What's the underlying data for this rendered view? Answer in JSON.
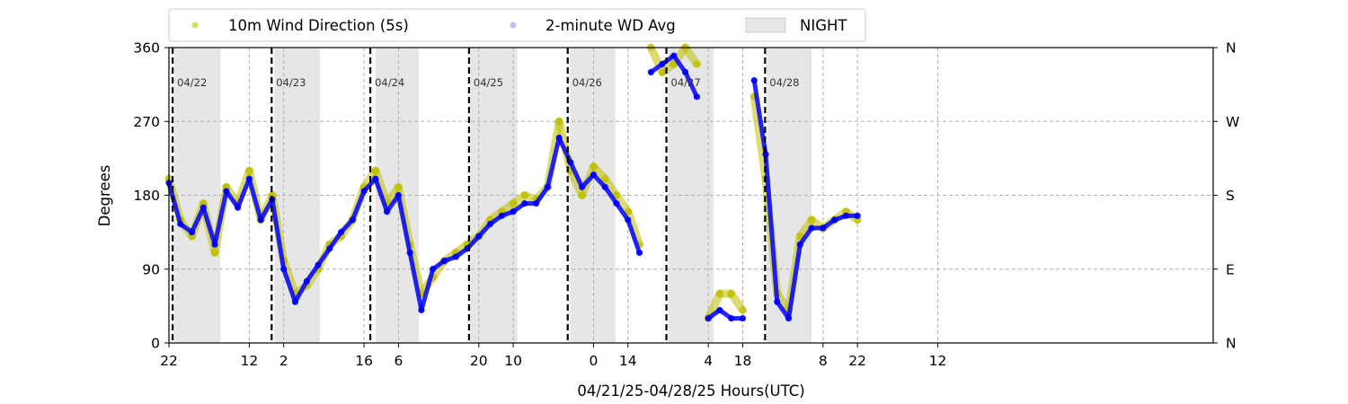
{
  "chart_data": {
    "type": "scatter",
    "xlabel": "04/21/25-04/28/25  Hours(UTC)",
    "ylabel": "Degrees",
    "ylim": [
      0,
      360
    ],
    "xlim_hours": [
      0,
      182
    ],
    "y_ticks": [
      0,
      90,
      180,
      270,
      360
    ],
    "y_right_ticks": [
      {
        "value": 0,
        "label": "N"
      },
      {
        "value": 90,
        "label": "E"
      },
      {
        "value": 180,
        "label": "S"
      },
      {
        "value": 270,
        "label": "W"
      },
      {
        "value": 360,
        "label": "N"
      }
    ],
    "x_ticks": [
      {
        "hour": 0,
        "label": "22"
      },
      {
        "hour": 14,
        "label": "12"
      },
      {
        "hour": 20,
        "label": "2"
      },
      {
        "hour": 34,
        "label": "16"
      },
      {
        "hour": 40,
        "label": "6"
      },
      {
        "hour": 54,
        "label": "20"
      },
      {
        "hour": 60,
        "label": "10"
      },
      {
        "hour": 74,
        "label": "0"
      },
      {
        "hour": 80,
        "label": "14"
      },
      {
        "hour": 94,
        "label": "4"
      },
      {
        "hour": 100,
        "label": "18"
      },
      {
        "hour": 114,
        "label": "8"
      },
      {
        "hour": 120,
        "label": "22"
      },
      {
        "hour": 134,
        "label": "12"
      }
    ],
    "grid": true,
    "legend": {
      "placement": "top-left",
      "entries": [
        {
          "label": "10m Wind Direction (5s)",
          "color": "#bfbf00",
          "marker": "dot"
        },
        {
          "label": "2-minute WD Avg",
          "color": "#0000ff",
          "marker": "dot"
        },
        {
          "label": "NIGHT",
          "color": "#e6e6e6",
          "marker": "patch"
        }
      ]
    },
    "day_boundaries": [
      {
        "hour": 0.65,
        "label": "04/22"
      },
      {
        "hour": 17.9,
        "label": "04/23"
      },
      {
        "hour": 35.1,
        "label": "04/24"
      },
      {
        "hour": 52.3,
        "label": "04/25"
      },
      {
        "hour": 69.5,
        "label": "04/26"
      },
      {
        "hour": 86.7,
        "label": "04/27"
      },
      {
        "hour": 103.9,
        "label": "04/28"
      }
    ],
    "night_periods": [
      [
        1.0,
        9.0
      ],
      [
        18.4,
        26.3
      ],
      [
        36.0,
        43.6
      ],
      [
        52.5,
        60.7
      ],
      [
        69.9,
        77.8
      ],
      [
        87.0,
        94.9
      ],
      [
        104.2,
        112.0
      ]
    ],
    "series": [
      {
        "name": "10m Wind Direction (5s)",
        "color": "#bfbf00",
        "x": [
          0,
          2,
          4,
          6,
          8,
          10,
          12,
          14,
          16,
          18,
          20,
          22,
          24,
          26,
          28,
          30,
          32,
          34,
          36,
          38,
          40,
          42,
          44,
          46,
          48,
          50,
          52,
          54,
          56,
          58,
          60,
          62,
          64,
          66,
          68,
          70,
          72,
          74,
          76,
          78,
          80,
          82,
          84,
          86,
          88,
          90,
          92,
          94,
          96,
          98,
          100,
          102,
          104,
          106,
          108,
          110,
          112,
          114,
          116,
          118,
          120
        ],
        "y": [
          200,
          150,
          130,
          170,
          110,
          190,
          170,
          210,
          150,
          180,
          100,
          60,
          70,
          90,
          120,
          130,
          150,
          190,
          210,
          170,
          190,
          120,
          60,
          80,
          100,
          110,
          120,
          130,
          150,
          160,
          170,
          180,
          175,
          190,
          270,
          210,
          180,
          215,
          200,
          180,
          160,
          120,
          360,
          330,
          340,
          360,
          340,
          30,
          60,
          60,
          40,
          300,
          200,
          60,
          40,
          130,
          150,
          140,
          150,
          160,
          150
        ]
      },
      {
        "name": "2-minute WD Avg",
        "color": "#0000ff",
        "x": [
          0,
          2,
          4,
          6,
          8,
          10,
          12,
          14,
          16,
          18,
          20,
          22,
          24,
          26,
          28,
          30,
          32,
          34,
          36,
          38,
          40,
          42,
          44,
          46,
          48,
          50,
          52,
          54,
          56,
          58,
          60,
          62,
          64,
          66,
          68,
          70,
          72,
          74,
          76,
          78,
          80,
          82,
          84,
          86,
          88,
          90,
          92,
          94,
          96,
          98,
          100,
          102,
          104,
          106,
          108,
          110,
          112,
          114,
          116,
          118,
          120
        ],
        "y": [
          195,
          145,
          135,
          165,
          120,
          185,
          165,
          200,
          150,
          175,
          90,
          50,
          75,
          95,
          115,
          135,
          150,
          185,
          200,
          160,
          180,
          110,
          40,
          90,
          100,
          105,
          115,
          130,
          145,
          155,
          160,
          170,
          170,
          190,
          250,
          220,
          190,
          205,
          190,
          170,
          150,
          110,
          330,
          340,
          350,
          330,
          300,
          30,
          40,
          30,
          30,
          320,
          230,
          50,
          30,
          120,
          140,
          140,
          150,
          155,
          155
        ]
      }
    ]
  }
}
